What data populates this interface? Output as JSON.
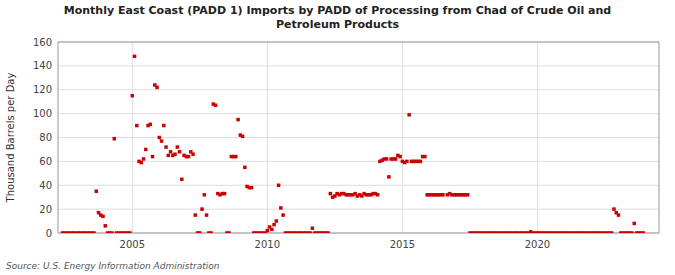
{
  "chart_data": {
    "type": "scatter",
    "title": "Monthly East Coast (PADD 1) Imports by PADD of Processing from Chad of Crude Oil and\nPetroleum Products",
    "y_label": "Thousand Barrels per Day",
    "annotations": [
      "Source: U.S. Energy Information Administration"
    ],
    "color": "#cc0000",
    "marker": "square",
    "grid": true,
    "xlim": [
      2002.25,
      2024.5
    ],
    "xticks": [
      2005,
      2010,
      2015,
      2020
    ],
    "ylim": [
      0,
      160
    ],
    "yticks": [
      0,
      20,
      40,
      60,
      80,
      100,
      120,
      140,
      160
    ],
    "x": [
      2002.417,
      2002.5,
      2002.583,
      2002.667,
      2002.75,
      2002.833,
      2002.917,
      2003.0,
      2003.083,
      2003.167,
      2003.25,
      2003.333,
      2003.417,
      2003.5,
      2003.583,
      2003.667,
      2003.75,
      2003.833,
      2003.917,
      2004.0,
      2004.083,
      2004.167,
      2004.25,
      2004.333,
      2004.417,
      2004.5,
      2004.583,
      2004.667,
      2004.75,
      2004.833,
      2004.917,
      2005.0,
      2005.083,
      2005.167,
      2005.25,
      2005.333,
      2005.417,
      2005.5,
      2005.583,
      2005.667,
      2005.75,
      2005.833,
      2005.917,
      2006.0,
      2006.083,
      2006.167,
      2006.25,
      2006.333,
      2006.417,
      2006.5,
      2006.583,
      2006.667,
      2006.75,
      2006.833,
      2006.917,
      2007.0,
      2007.083,
      2007.167,
      2007.25,
      2007.333,
      2007.417,
      2007.5,
      2007.583,
      2007.667,
      2007.75,
      2007.833,
      2007.917,
      2008.0,
      2008.083,
      2008.167,
      2008.25,
      2008.333,
      2008.417,
      2008.5,
      2008.583,
      2008.667,
      2008.75,
      2008.833,
      2008.917,
      2009.0,
      2009.083,
      2009.167,
      2009.25,
      2009.333,
      2009.417,
      2009.5,
      2009.583,
      2009.667,
      2009.75,
      2009.833,
      2009.917,
      2010.0,
      2010.083,
      2010.167,
      2010.25,
      2010.333,
      2010.417,
      2010.5,
      2010.583,
      2010.667,
      2010.75,
      2010.833,
      2010.917,
      2011.0,
      2011.083,
      2011.167,
      2011.25,
      2011.333,
      2011.417,
      2011.5,
      2011.583,
      2011.667,
      2011.75,
      2011.833,
      2011.917,
      2012.0,
      2012.083,
      2012.167,
      2012.25,
      2012.333,
      2012.417,
      2012.5,
      2012.583,
      2012.667,
      2012.75,
      2012.833,
      2012.917,
      2013.0,
      2013.083,
      2013.167,
      2013.25,
      2013.333,
      2013.417,
      2013.5,
      2013.583,
      2013.667,
      2013.75,
      2013.833,
      2013.917,
      2014.0,
      2014.083,
      2014.167,
      2014.25,
      2014.333,
      2014.417,
      2014.5,
      2014.583,
      2014.667,
      2014.75,
      2014.833,
      2014.917,
      2015.0,
      2015.083,
      2015.167,
      2015.25,
      2015.333,
      2015.417,
      2015.5,
      2015.583,
      2015.667,
      2015.75,
      2015.833,
      2015.917,
      2016.0,
      2016.083,
      2016.167,
      2016.25,
      2016.333,
      2016.417,
      2016.5,
      2016.667,
      2016.75,
      2016.833,
      2016.917,
      2017.0,
      2017.083,
      2017.167,
      2017.25,
      2017.333,
      2017.417,
      2017.5,
      2017.583,
      2017.667,
      2017.75,
      2017.833,
      2017.917,
      2018.0,
      2018.083,
      2018.167,
      2018.25,
      2018.333,
      2018.417,
      2018.5,
      2018.583,
      2018.667,
      2018.75,
      2018.833,
      2018.917,
      2019.0,
      2019.083,
      2019.167,
      2019.25,
      2019.333,
      2019.417,
      2019.5,
      2019.583,
      2019.667,
      2019.75,
      2019.833,
      2019.917,
      2020.0,
      2020.083,
      2020.167,
      2020.25,
      2020.333,
      2020.417,
      2020.5,
      2020.583,
      2020.667,
      2020.75,
      2020.833,
      2020.917,
      2021.0,
      2021.083,
      2021.167,
      2021.25,
      2021.333,
      2021.417,
      2021.5,
      2021.583,
      2021.667,
      2021.75,
      2021.833,
      2021.917,
      2022.0,
      2022.083,
      2022.167,
      2022.25,
      2022.333,
      2022.417,
      2022.5,
      2022.583,
      2022.667,
      2022.75,
      2022.833,
      2022.917,
      2023.0,
      2023.083,
      2023.167,
      2023.25,
      2023.333,
      2023.417,
      2023.5,
      2023.583,
      2023.667,
      2023.75,
      2023.833,
      2023.917
    ],
    "values": [
      0,
      0,
      0,
      0,
      0,
      0,
      0,
      0,
      0,
      0,
      0,
      0,
      0,
      0,
      0,
      35,
      17,
      15,
      14,
      6,
      0,
      0,
      0,
      79,
      0,
      0,
      0,
      0,
      0,
      0,
      0,
      115,
      148,
      90,
      60,
      59,
      62,
      70,
      90,
      91,
      64,
      124,
      122,
      80,
      77,
      90,
      72,
      65,
      68,
      65,
      66,
      72,
      68,
      45,
      65,
      64,
      64,
      68,
      66,
      15,
      0,
      0,
      20,
      32,
      15,
      0,
      0,
      108,
      107,
      33,
      32,
      33,
      33,
      0,
      0,
      64,
      64,
      64,
      95,
      82,
      81,
      55,
      39,
      38,
      38,
      0,
      0,
      0,
      0,
      0,
      0,
      2,
      5,
      3,
      7,
      10,
      40,
      21,
      15,
      0,
      0,
      0,
      0,
      0,
      0,
      0,
      0,
      0,
      0,
      0,
      0,
      4,
      0,
      0,
      0,
      0,
      0,
      0,
      0,
      33,
      30,
      31,
      33,
      32,
      33,
      33,
      32,
      32,
      32,
      32,
      33,
      31,
      32,
      31,
      33,
      32,
      32,
      32,
      33,
      33,
      32,
      60,
      61,
      62,
      62,
      47,
      62,
      62,
      62,
      65,
      64,
      60,
      59,
      60,
      99,
      60,
      60,
      60,
      60,
      60,
      64,
      64,
      32,
      32,
      32,
      32,
      32,
      32,
      32,
      32,
      32,
      33,
      32,
      32,
      32,
      32,
      32,
      32,
      32,
      32,
      0,
      0,
      0,
      0,
      0,
      0,
      0,
      0,
      0,
      0,
      0,
      0,
      0,
      0,
      0,
      0,
      0,
      0,
      0,
      0,
      0,
      0,
      0,
      0,
      0,
      0,
      0,
      1,
      0,
      0,
      0,
      0,
      0,
      0,
      0,
      0,
      0,
      0,
      0,
      0,
      0,
      0,
      0,
      0,
      0,
      0,
      0,
      0,
      0,
      0,
      0,
      0,
      0,
      0,
      0,
      0,
      0,
      0,
      0,
      0,
      0,
      0,
      0,
      0,
      20,
      17,
      15,
      0,
      0,
      0,
      0,
      0,
      0,
      8,
      0,
      0,
      0,
      0
    ]
  }
}
